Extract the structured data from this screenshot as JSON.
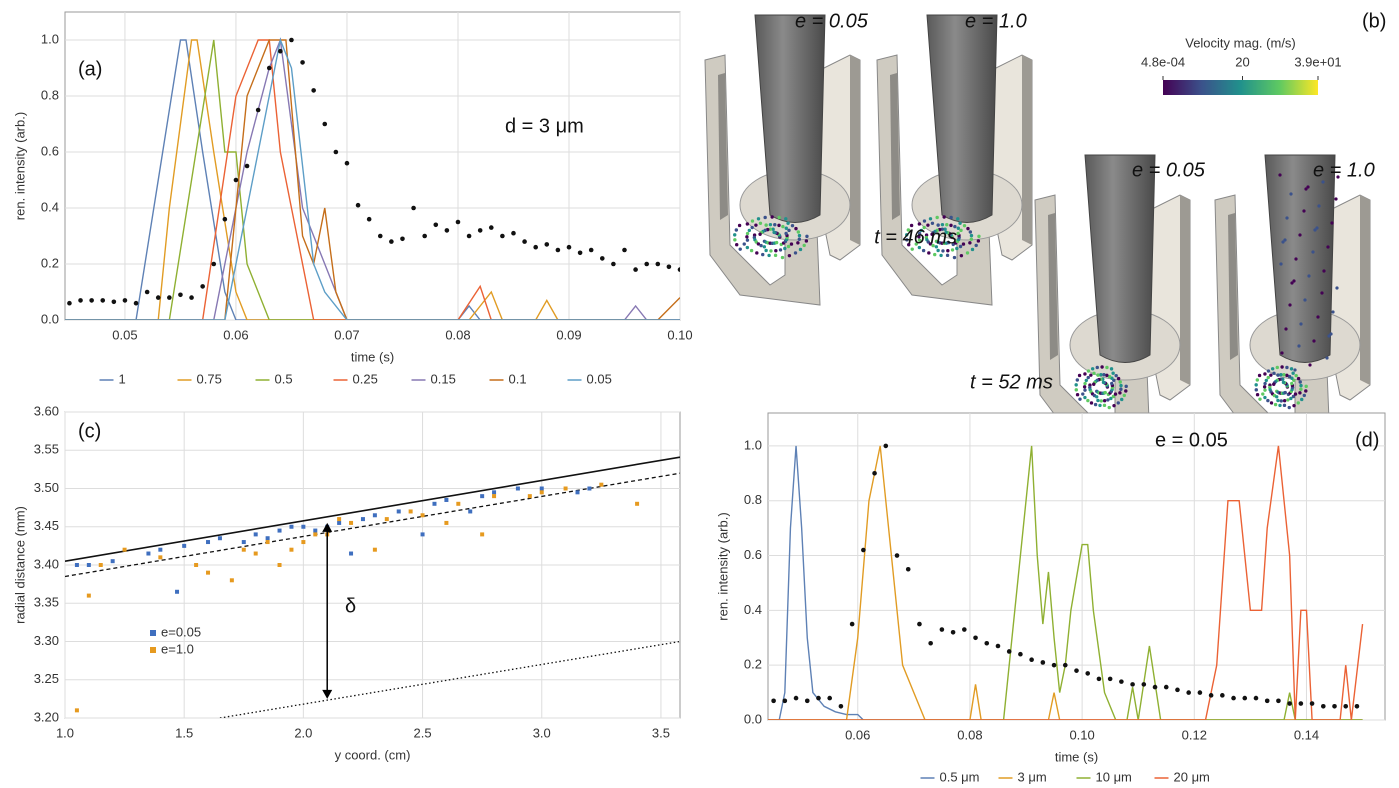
{
  "chart_data": [
    {
      "type": "line",
      "panel_label": "(a)",
      "annotation": "d = 3 μm",
      "xlabel": "time (s)",
      "ylabel": "ren. intensity (arb.)",
      "xlim": [
        0.0446,
        0.1
      ],
      "ylim": [
        0,
        1.1
      ],
      "xticks": [
        0.05,
        0.06,
        0.07,
        0.08,
        0.09,
        {
          "value": 0.1,
          "label": "0.10"
        }
      ],
      "yticks": [
        {
          "value": 0,
          "label": "0.0"
        },
        0.2,
        0.4,
        0.6,
        0.8,
        {
          "value": 1,
          "label": "1.0"
        }
      ],
      "grid": true,
      "legend": "bottom",
      "series": [
        {
          "name": "1",
          "color": "#5e81b5",
          "x": [
            0.0446,
            0.051,
            0.053,
            0.055,
            0.0555,
            0.057,
            0.059,
            0.06,
            0.08,
            0.081,
            0.082,
            0.1
          ],
          "values": [
            0,
            0,
            0.5,
            1,
            1,
            0.6,
            0.1,
            0,
            0,
            0.05,
            0,
            0
          ]
        },
        {
          "name": "0.75",
          "color": "#e19c24",
          "x": [
            0.0446,
            0.053,
            0.054,
            0.056,
            0.0565,
            0.058,
            0.06,
            0.061,
            0.081,
            0.083,
            0.084,
            0.087,
            0.088,
            0.089,
            0.1
          ],
          "values": [
            0,
            0,
            0.4,
            1,
            1,
            0.6,
            0.1,
            0,
            0,
            0.1,
            0,
            0,
            0.07,
            0,
            0
          ]
        },
        {
          "name": "0.5",
          "color": "#8fb032",
          "x": [
            0.0446,
            0.054,
            0.056,
            0.058,
            0.059,
            0.06,
            0.061,
            0.063,
            0.1
          ],
          "values": [
            0,
            0,
            0.5,
            1,
            0.6,
            0.6,
            0.2,
            0,
            0
          ]
        },
        {
          "name": "0.25",
          "color": "#eb6235",
          "x": [
            0.0446,
            0.057,
            0.06,
            0.062,
            0.063,
            0.064,
            0.065,
            0.067,
            0.08,
            0.082,
            0.083,
            0.1
          ],
          "values": [
            0,
            0,
            0.8,
            1,
            1,
            0.6,
            0.4,
            0,
            0,
            0.12,
            0,
            0
          ]
        },
        {
          "name": "0.15",
          "color": "#8778b3",
          "x": [
            0.0446,
            0.058,
            0.061,
            0.063,
            0.064,
            0.066,
            0.068,
            0.07,
            0.095,
            0.096,
            0.097,
            0.1
          ],
          "values": [
            0,
            0,
            0.6,
            0.9,
            1,
            0.4,
            0.2,
            0,
            0,
            0.05,
            0,
            0
          ]
        },
        {
          "name": "0.1",
          "color": "#c56e1a",
          "x": [
            0.0446,
            0.059,
            0.061,
            0.063,
            0.0645,
            0.066,
            0.067,
            0.068,
            0.069,
            0.07,
            0.098,
            0.1
          ],
          "values": [
            0,
            0,
            0.8,
            1,
            1,
            0.3,
            0.2,
            0.4,
            0.1,
            0,
            0,
            0.08
          ]
        },
        {
          "name": "0.05",
          "color": "#5d9ec7",
          "x": [
            0.0446,
            0.059,
            0.062,
            0.064,
            0.065,
            0.067,
            0.068,
            0.07,
            0.1
          ],
          "values": [
            0,
            0,
            0.6,
            1,
            0.9,
            0.2,
            0.1,
            0,
            0
          ]
        },
        {
          "style": "dots",
          "color": "#111111",
          "x": [
            0.045,
            0.046,
            0.047,
            0.048,
            0.049,
            0.05,
            0.051,
            0.052,
            0.053,
            0.054,
            0.055,
            0.056,
            0.057,
            0.058,
            0.059,
            0.06,
            0.061,
            0.062,
            0.063,
            0.064,
            0.065,
            0.066,
            0.067,
            0.068,
            0.069,
            0.07,
            0.071,
            0.072,
            0.073,
            0.074,
            0.075,
            0.076,
            0.077,
            0.078,
            0.079,
            0.08,
            0.081,
            0.082,
            0.083,
            0.084,
            0.085,
            0.086,
            0.087,
            0.088,
            0.089,
            0.09,
            0.091,
            0.092,
            0.093,
            0.094,
            0.095,
            0.096,
            0.097,
            0.098,
            0.099,
            0.1
          ],
          "values": [
            0.06,
            0.07,
            0.07,
            0.07,
            0.065,
            0.07,
            0.06,
            0.1,
            0.08,
            0.08,
            0.09,
            0.08,
            0.12,
            0.2,
            0.36,
            0.5,
            0.55,
            0.75,
            0.9,
            0.96,
            1.0,
            0.92,
            0.82,
            0.7,
            0.6,
            0.56,
            0.41,
            0.36,
            0.3,
            0.28,
            0.29,
            0.4,
            0.3,
            0.34,
            0.32,
            0.35,
            0.3,
            0.32,
            0.33,
            0.3,
            0.31,
            0.28,
            0.26,
            0.27,
            0.25,
            0.26,
            0.24,
            0.25,
            0.22,
            0.2,
            0.25,
            0.18,
            0.2,
            0.2,
            0.19,
            0.18
          ]
        }
      ]
    },
    {
      "type": "render",
      "panel_label": "(b)",
      "labels": [
        "e = 0.05",
        "e = 1.0",
        "t = 46 ms",
        "e = 0.05",
        "e = 1.0",
        "t = 52 ms"
      ],
      "colorbar": {
        "title": "Velocity  mag. (m/s)",
        "clim": [
          0.00048,
          39
        ],
        "ticks": [
          {
            "value": 0.00048,
            "label": "4.8e-04"
          },
          20,
          {
            "value": 39,
            "label": "3.9e+01"
          }
        ]
      }
    },
    {
      "type": "scatter",
      "panel_label": "(c)",
      "annotation": "δ",
      "xlabel": "y coord. (cm)",
      "ylabel": "radial distance (mm)",
      "xlim": [
        1.0,
        3.58
      ],
      "ylim": [
        3.2,
        3.6
      ],
      "xticks": [
        {
          "value": 1,
          "label": "1.0"
        },
        1.5,
        {
          "value": 2,
          "label": "2.0"
        },
        2.5,
        {
          "value": 3,
          "label": "3.0"
        },
        3.5
      ],
      "yticks": [
        {
          "value": 3.2,
          "label": "3.20"
        },
        3.25,
        {
          "value": 3.3,
          "label": "3.30"
        },
        3.35,
        {
          "value": 3.4,
          "label": "3.40"
        },
        3.45,
        {
          "value": 3.5,
          "label": "3.50"
        },
        3.55,
        {
          "value": 3.6,
          "label": "3.60"
        }
      ],
      "grid": true,
      "legend": "inside-left",
      "lines": [
        {
          "dash": "solid",
          "x": [
            1.0,
            3.58
          ],
          "y": [
            3.405,
            3.541
          ]
        },
        {
          "dash": "dashed",
          "x": [
            1.0,
            3.58
          ],
          "y": [
            3.385,
            3.52
          ]
        },
        {
          "dash": "dotted",
          "x": [
            1.65,
            3.58
          ],
          "y": [
            3.2,
            3.3
          ]
        }
      ],
      "arrow": {
        "x": 2.1,
        "y": [
          3.225,
          3.455
        ]
      },
      "series": [
        {
          "name": "e=0.05",
          "color": "#3f6fbf",
          "x": [
            1.05,
            1.1,
            1.2,
            1.35,
            1.4,
            1.47,
            1.5,
            1.6,
            1.65,
            1.75,
            1.8,
            1.85,
            1.9,
            1.95,
            2.0,
            2.05,
            2.1,
            2.15,
            2.2,
            2.25,
            2.3,
            2.4,
            2.5,
            2.55,
            2.6,
            2.7,
            2.75,
            2.8,
            2.9,
            3.0,
            3.15,
            3.2
          ],
          "values": [
            3.4,
            3.4,
            3.405,
            3.415,
            3.42,
            3.365,
            3.425,
            3.43,
            3.435,
            3.43,
            3.44,
            3.435,
            3.445,
            3.45,
            3.45,
            3.445,
            3.45,
            3.455,
            3.415,
            3.46,
            3.465,
            3.47,
            3.44,
            3.48,
            3.485,
            3.47,
            3.49,
            3.495,
            3.5,
            3.5,
            3.495,
            3.5
          ]
        },
        {
          "name": "e=1.0",
          "color": "#e69a1f",
          "x": [
            1.05,
            1.1,
            1.15,
            1.25,
            1.4,
            1.55,
            1.6,
            1.7,
            1.75,
            1.8,
            1.85,
            1.9,
            1.95,
            2.0,
            2.05,
            2.1,
            2.15,
            2.2,
            2.3,
            2.35,
            2.45,
            2.5,
            2.6,
            2.65,
            2.75,
            2.8,
            2.95,
            3.0,
            3.1,
            3.25,
            3.4
          ],
          "values": [
            3.21,
            3.36,
            3.4,
            3.42,
            3.41,
            3.4,
            3.39,
            3.38,
            3.42,
            3.415,
            3.43,
            3.4,
            3.42,
            3.43,
            3.44,
            3.44,
            3.46,
            3.455,
            3.42,
            3.46,
            3.47,
            3.465,
            3.455,
            3.48,
            3.44,
            3.49,
            3.49,
            3.495,
            3.5,
            3.505,
            3.48
          ]
        }
      ]
    },
    {
      "type": "line",
      "panel_label": "(d)",
      "annotation": "e = 0.05",
      "xlabel": "time (s)",
      "ylabel": "ren. intensity (arb.)",
      "xlim": [
        0.044,
        0.154
      ],
      "ylim": [
        0,
        1.12
      ],
      "xticks": [
        0.06,
        0.08,
        {
          "value": 0.1,
          "label": "0.10"
        },
        0.12,
        0.14
      ],
      "yticks": [
        {
          "value": 0,
          "label": "0.0"
        },
        0.2,
        0.4,
        0.6,
        0.8,
        {
          "value": 1,
          "label": "1.0"
        }
      ],
      "grid": true,
      "legend": "bottom",
      "series": [
        {
          "name": "0.5 μm",
          "color": "#5e81b5",
          "x": [
            0.044,
            0.046,
            0.047,
            0.048,
            0.049,
            0.05,
            0.051,
            0.052,
            0.054,
            0.056,
            0.058,
            0.06,
            0.061,
            0.15
          ],
          "values": [
            0,
            0,
            0.1,
            0.7,
            1,
            0.7,
            0.3,
            0.1,
            0.05,
            0.03,
            0.02,
            0.02,
            0,
            0
          ]
        },
        {
          "name": "3 μm",
          "color": "#e19c24",
          "x": [
            0.044,
            0.058,
            0.06,
            0.062,
            0.064,
            0.066,
            0.068,
            0.07,
            0.072,
            0.073,
            0.08,
            0.081,
            0.082,
            0.094,
            0.095,
            0.096,
            0.15
          ],
          "values": [
            0,
            0,
            0.3,
            0.8,
            1,
            0.6,
            0.2,
            0.1,
            0,
            0,
            0,
            0.13,
            0,
            0,
            0.1,
            0,
            0
          ]
        },
        {
          "name": "10 μm",
          "color": "#8fb032",
          "x": [
            0.044,
            0.086,
            0.088,
            0.091,
            0.092,
            0.093,
            0.094,
            0.095,
            0.096,
            0.097,
            0.098,
            0.1,
            0.101,
            0.102,
            0.104,
            0.106,
            0.108,
            0.109,
            0.11,
            0.112,
            0.114,
            0.136,
            0.137,
            0.138,
            0.15
          ],
          "values": [
            0,
            0,
            0.4,
            1.0,
            0.6,
            0.35,
            0.54,
            0.3,
            0.1,
            0.2,
            0.4,
            0.64,
            0.64,
            0.4,
            0.1,
            0,
            0,
            0.12,
            0,
            0.27,
            0,
            0,
            0.1,
            0,
            0
          ]
        },
        {
          "name": "20 μm",
          "color": "#eb6235",
          "x": [
            0.044,
            0.122,
            0.124,
            0.126,
            0.128,
            0.13,
            0.132,
            0.133,
            0.135,
            0.137,
            0.138,
            0.139,
            0.14,
            0.141,
            0.146,
            0.147,
            0.148,
            0.15
          ],
          "values": [
            0,
            0,
            0.2,
            0.8,
            0.8,
            0.4,
            0.4,
            0.7,
            1,
            0.6,
            0,
            0.4,
            0.4,
            0,
            0,
            0.2,
            0,
            0.35
          ]
        },
        {
          "style": "dots",
          "color": "#111111",
          "x": [
            0.045,
            0.047,
            0.049,
            0.051,
            0.053,
            0.055,
            0.057,
            0.059,
            0.061,
            0.063,
            0.065,
            0.067,
            0.069,
            0.071,
            0.073,
            0.075,
            0.077,
            0.079,
            0.081,
            0.083,
            0.085,
            0.087,
            0.089,
            0.091,
            0.093,
            0.095,
            0.097,
            0.099,
            0.101,
            0.103,
            0.105,
            0.107,
            0.109,
            0.111,
            0.113,
            0.115,
            0.117,
            0.119,
            0.121,
            0.123,
            0.125,
            0.127,
            0.129,
            0.131,
            0.133,
            0.135,
            0.137,
            0.139,
            0.141,
            0.143,
            0.145,
            0.147,
            0.149
          ],
          "values": [
            0.07,
            0.07,
            0.08,
            0.07,
            0.08,
            0.08,
            0.05,
            0.35,
            0.62,
            0.9,
            1.0,
            0.6,
            0.55,
            0.35,
            0.28,
            0.33,
            0.32,
            0.33,
            0.3,
            0.28,
            0.27,
            0.25,
            0.24,
            0.22,
            0.21,
            0.2,
            0.2,
            0.18,
            0.17,
            0.15,
            0.15,
            0.14,
            0.13,
            0.13,
            0.12,
            0.12,
            0.11,
            0.1,
            0.1,
            0.09,
            0.09,
            0.08,
            0.08,
            0.08,
            0.07,
            0.07,
            0.06,
            0.06,
            0.06,
            0.05,
            0.05,
            0.05,
            0.05
          ]
        }
      ]
    }
  ]
}
